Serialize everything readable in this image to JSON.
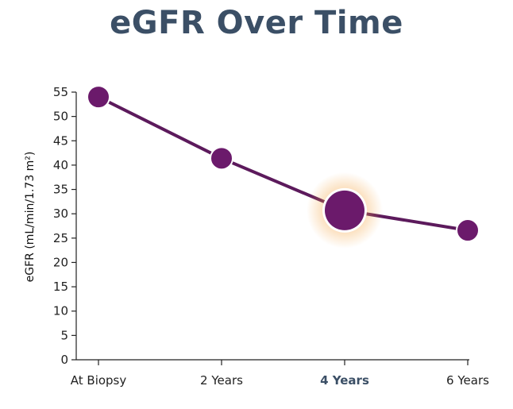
{
  "chart_data": {
    "type": "line",
    "title": "eGFR Over Time",
    "xlabel": "",
    "ylabel": "eGFR (mL/min/1.73 m²)",
    "categories": [
      "At Biopsy",
      "2 Years",
      "4 Years",
      "6 Years"
    ],
    "values": [
      54,
      41.4,
      30.7,
      26.6
    ],
    "highlighted_category": "4 Years",
    "ylim": [
      0,
      55
    ],
    "yticks": [
      0,
      5,
      10,
      15,
      20,
      25,
      30,
      35,
      40,
      45,
      50,
      55
    ],
    "grid": false,
    "colors": {
      "line": "#5c1a5c",
      "marker": "#6b1a6b",
      "title": "#3b4f66",
      "highlight_glow": "#f4a340"
    }
  }
}
